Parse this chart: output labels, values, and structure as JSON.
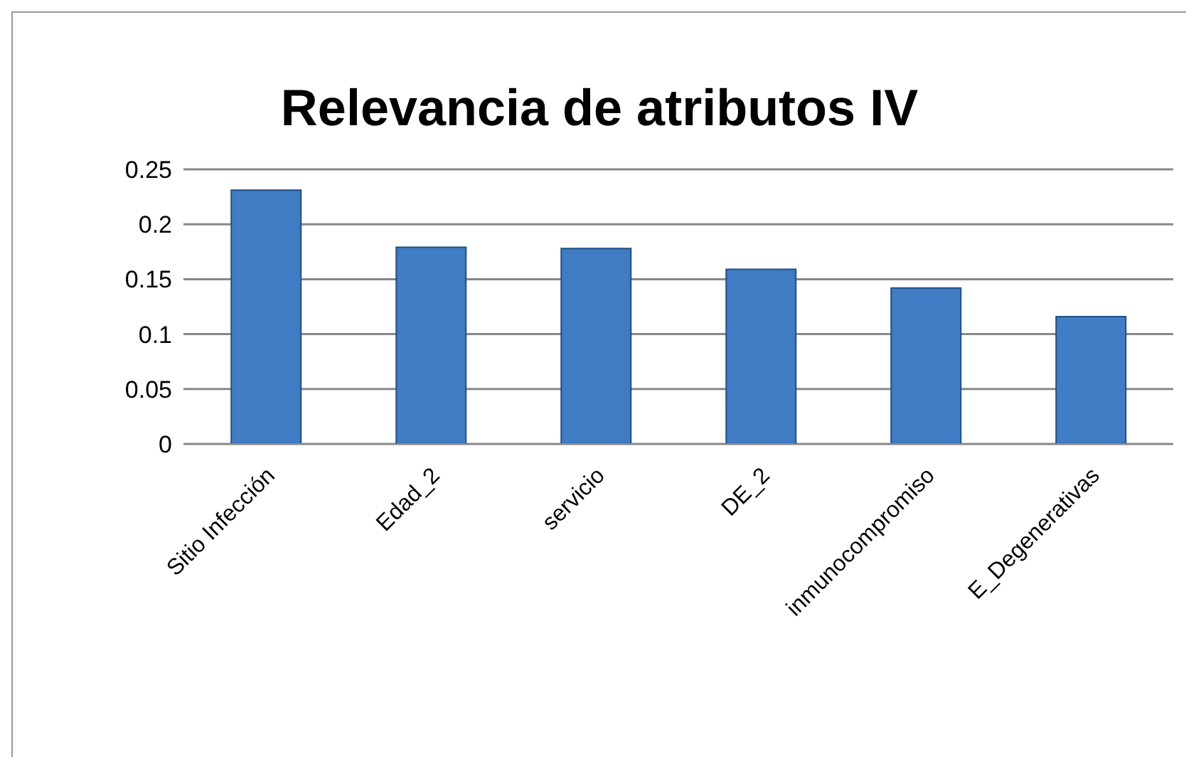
{
  "chart_data": {
    "type": "bar",
    "title": "Relevancia de atributos IV",
    "categories": [
      "Sitio Infección",
      "Edad_2",
      "servicio",
      "DE_2",
      "inmunocompromiso",
      "E_Degenerativas"
    ],
    "values": [
      0.231,
      0.179,
      0.178,
      0.159,
      0.142,
      0.116
    ],
    "color": "#3f7cc4",
    "ylim": [
      0,
      0.25
    ],
    "yticks": [
      0,
      0.05,
      0.1,
      0.15,
      0.2,
      0.25
    ],
    "grid": "y"
  }
}
